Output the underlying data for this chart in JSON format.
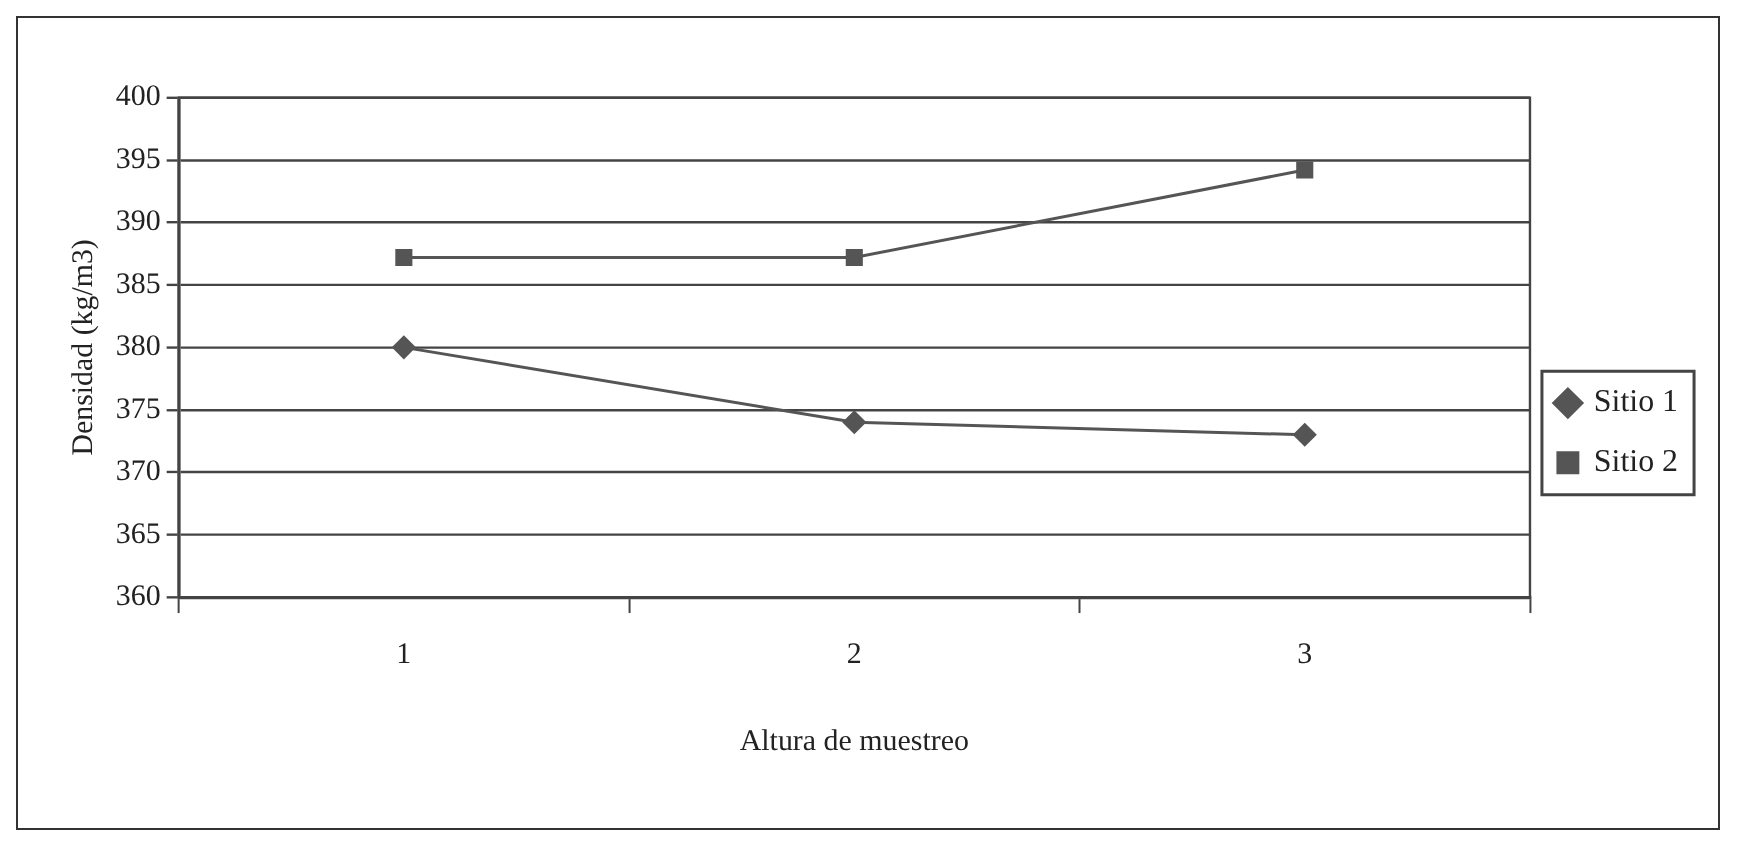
{
  "chart_data": {
    "type": "line",
    "xlabel": "Altura de muestreo",
    "ylabel": "Densidad (kg/m3)",
    "categories": [
      "1",
      "2",
      "3"
    ],
    "series": [
      {
        "name": "Sitio 1",
        "color": "#555555",
        "marker": "diamond",
        "values": [
          380,
          374,
          373
        ]
      },
      {
        "name": "Sitio 2",
        "color": "#555555",
        "marker": "square",
        "values": [
          387.2,
          387.2,
          394.2
        ]
      }
    ],
    "ylim": [
      360,
      400
    ],
    "yticks": [
      360,
      365,
      370,
      375,
      380,
      385,
      390,
      395,
      400
    ],
    "grid": "y",
    "legend": "right",
    "line_style": "solid"
  }
}
